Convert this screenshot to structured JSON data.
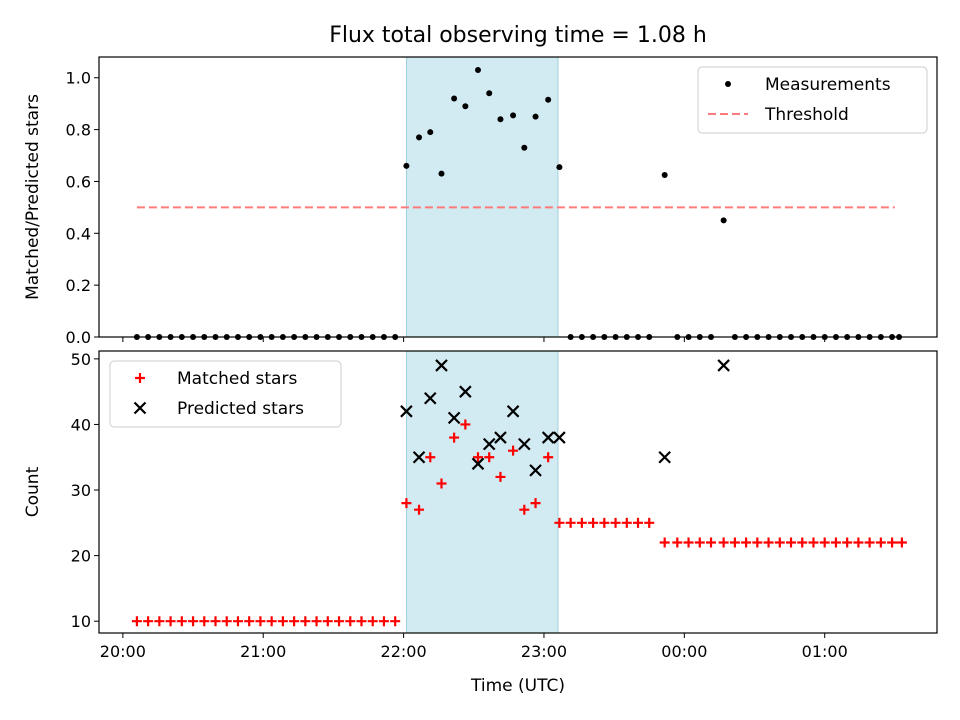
{
  "chart_data": [
    {
      "type": "scatter",
      "title": "Flux total observing time = 1.08 h",
      "ylabel": "Matched/Predicted stars",
      "xlabel": "",
      "ylim": [
        0,
        1.08
      ],
      "yticks": [
        "0.0",
        "0.2",
        "0.4",
        "0.6",
        "0.8",
        "1.0"
      ],
      "ytick_values": [
        0,
        0.2,
        0.4,
        0.6,
        0.8,
        1.0
      ],
      "xlim_hours": [
        19.83,
        25.8
      ],
      "legend_position": "top-right",
      "highlight_span_hours": [
        22.02,
        23.1
      ],
      "highlight_color": "#add8e6",
      "series": [
        {
          "name": "Measurements",
          "marker": "dot",
          "color": "#000000",
          "points": [
            [
              20.1,
              0
            ],
            [
              20.18,
              0
            ],
            [
              20.26,
              0
            ],
            [
              20.34,
              0
            ],
            [
              20.42,
              0
            ],
            [
              20.5,
              0
            ],
            [
              20.58,
              0
            ],
            [
              20.66,
              0
            ],
            [
              20.74,
              0
            ],
            [
              20.82,
              0
            ],
            [
              20.9,
              0
            ],
            [
              20.98,
              0
            ],
            [
              21.06,
              0
            ],
            [
              21.14,
              0
            ],
            [
              21.22,
              0
            ],
            [
              21.3,
              0
            ],
            [
              21.38,
              0
            ],
            [
              21.46,
              0
            ],
            [
              21.54,
              0
            ],
            [
              21.62,
              0
            ],
            [
              21.7,
              0
            ],
            [
              21.78,
              0
            ],
            [
              21.86,
              0
            ],
            [
              21.94,
              0
            ],
            [
              22.02,
              0.66
            ],
            [
              22.11,
              0.77
            ],
            [
              22.19,
              0.79
            ],
            [
              22.27,
              0.63
            ],
            [
              22.36,
              0.92
            ],
            [
              22.44,
              0.89
            ],
            [
              22.53,
              1.03
            ],
            [
              22.61,
              0.94
            ],
            [
              22.69,
              0.84
            ],
            [
              22.78,
              0.855
            ],
            [
              22.86,
              0.73
            ],
            [
              22.94,
              0.85
            ],
            [
              23.03,
              0.915
            ],
            [
              23.11,
              0.655
            ],
            [
              23.19,
              0
            ],
            [
              23.27,
              0
            ],
            [
              23.35,
              0
            ],
            [
              23.43,
              0
            ],
            [
              23.51,
              0
            ],
            [
              23.59,
              0
            ],
            [
              23.67,
              0
            ],
            [
              23.75,
              0
            ],
            [
              23.86,
              0.625
            ],
            [
              23.95,
              0
            ],
            [
              24.03,
              0
            ],
            [
              24.11,
              0
            ],
            [
              24.19,
              0
            ],
            [
              24.28,
              0.45
            ],
            [
              24.36,
              0
            ],
            [
              24.44,
              0
            ],
            [
              24.52,
              0
            ],
            [
              24.6,
              0
            ],
            [
              24.68,
              0
            ],
            [
              24.76,
              0
            ],
            [
              24.84,
              0
            ],
            [
              24.92,
              0
            ],
            [
              25.0,
              0
            ],
            [
              25.08,
              0
            ],
            [
              25.16,
              0
            ],
            [
              25.24,
              0
            ],
            [
              25.32,
              0
            ],
            [
              25.4,
              0
            ],
            [
              25.48,
              0
            ],
            [
              25.53,
              0
            ]
          ]
        },
        {
          "name": "Threshold",
          "marker": "dashed-line",
          "color": "#ff7b7b",
          "points": [
            [
              20.1,
              0.5
            ],
            [
              25.5,
              0.5
            ]
          ]
        }
      ]
    },
    {
      "type": "scatter",
      "title": "",
      "ylabel": "Count",
      "xlabel": "Time (UTC)",
      "ylim": [
        8.2,
        51.2
      ],
      "yticks": [
        "10",
        "20",
        "30",
        "40",
        "50"
      ],
      "ytick_values": [
        10,
        20,
        30,
        40,
        50
      ],
      "xlim_hours": [
        19.83,
        25.8
      ],
      "xticks": [
        "20:00",
        "21:00",
        "22:00",
        "23:00",
        "00:00",
        "01:00"
      ],
      "xtick_hours": [
        20,
        21,
        22,
        23,
        24,
        25
      ],
      "legend_position": "top-left",
      "highlight_span_hours": [
        22.02,
        23.1
      ],
      "highlight_color": "#add8e6",
      "series": [
        {
          "name": "Matched stars",
          "marker": "plus",
          "color": "#ff0000",
          "points": [
            [
              20.1,
              10
            ],
            [
              20.18,
              10
            ],
            [
              20.26,
              10
            ],
            [
              20.34,
              10
            ],
            [
              20.42,
              10
            ],
            [
              20.5,
              10
            ],
            [
              20.58,
              10
            ],
            [
              20.66,
              10
            ],
            [
              20.74,
              10
            ],
            [
              20.82,
              10
            ],
            [
              20.9,
              10
            ],
            [
              20.98,
              10
            ],
            [
              21.06,
              10
            ],
            [
              21.14,
              10
            ],
            [
              21.22,
              10
            ],
            [
              21.3,
              10
            ],
            [
              21.38,
              10
            ],
            [
              21.46,
              10
            ],
            [
              21.54,
              10
            ],
            [
              21.62,
              10
            ],
            [
              21.7,
              10
            ],
            [
              21.78,
              10
            ],
            [
              21.86,
              10
            ],
            [
              21.94,
              10
            ],
            [
              22.02,
              28
            ],
            [
              22.11,
              27
            ],
            [
              22.19,
              35
            ],
            [
              22.27,
              31
            ],
            [
              22.36,
              38
            ],
            [
              22.44,
              40
            ],
            [
              22.53,
              35
            ],
            [
              22.61,
              35
            ],
            [
              22.69,
              32
            ],
            [
              22.78,
              36
            ],
            [
              22.86,
              27
            ],
            [
              22.94,
              28
            ],
            [
              23.03,
              35
            ],
            [
              23.11,
              25
            ],
            [
              23.19,
              25
            ],
            [
              23.27,
              25
            ],
            [
              23.35,
              25
            ],
            [
              23.43,
              25
            ],
            [
              23.51,
              25
            ],
            [
              23.59,
              25
            ],
            [
              23.67,
              25
            ],
            [
              23.75,
              25
            ],
            [
              23.86,
              22
            ],
            [
              23.95,
              22
            ],
            [
              24.03,
              22
            ],
            [
              24.11,
              22
            ],
            [
              24.19,
              22
            ],
            [
              24.28,
              22
            ],
            [
              24.36,
              22
            ],
            [
              24.44,
              22
            ],
            [
              24.52,
              22
            ],
            [
              24.6,
              22
            ],
            [
              24.68,
              22
            ],
            [
              24.76,
              22
            ],
            [
              24.84,
              22
            ],
            [
              24.92,
              22
            ],
            [
              25.0,
              22
            ],
            [
              25.08,
              22
            ],
            [
              25.16,
              22
            ],
            [
              25.24,
              22
            ],
            [
              25.32,
              22
            ],
            [
              25.4,
              22
            ],
            [
              25.48,
              22
            ],
            [
              25.55,
              22
            ]
          ]
        },
        {
          "name": "Predicted stars",
          "marker": "x",
          "color": "#000000",
          "points": [
            [
              22.02,
              42
            ],
            [
              22.11,
              35
            ],
            [
              22.19,
              44
            ],
            [
              22.27,
              49
            ],
            [
              22.36,
              41
            ],
            [
              22.44,
              45
            ],
            [
              22.53,
              34
            ],
            [
              22.61,
              37
            ],
            [
              22.69,
              38
            ],
            [
              22.78,
              42
            ],
            [
              22.86,
              37
            ],
            [
              22.94,
              33
            ],
            [
              23.03,
              38
            ],
            [
              23.11,
              38
            ],
            [
              23.86,
              35
            ],
            [
              24.28,
              49
            ]
          ]
        }
      ]
    }
  ]
}
